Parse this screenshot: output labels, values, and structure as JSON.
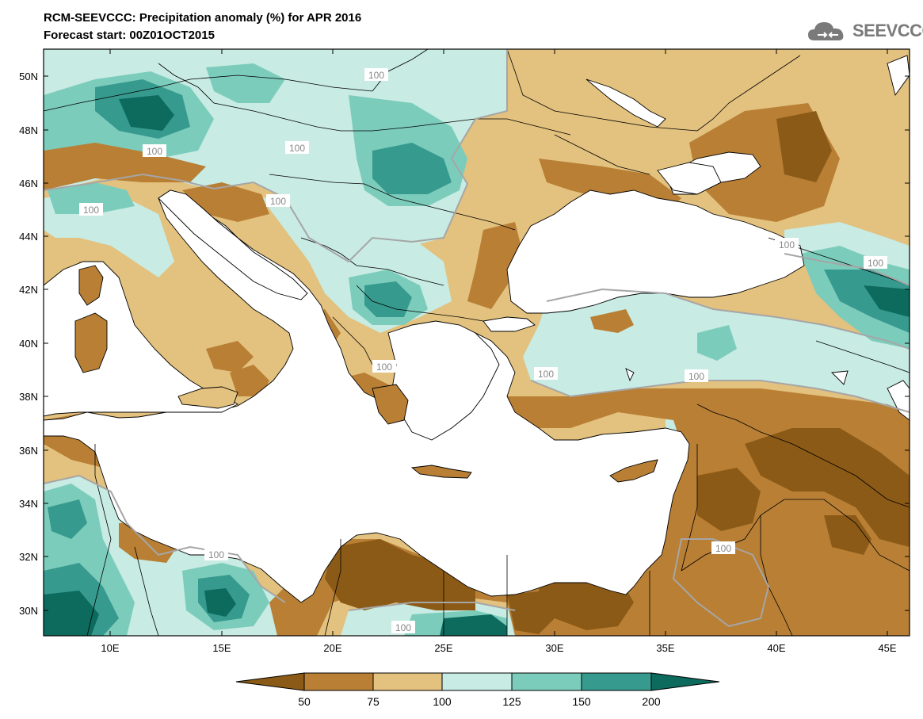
{
  "header": {
    "title": "RCM-SEEVCCC: Precipitation anomaly (%) for APR 2016",
    "subtitle": "Forecast start: 00Z01OCT2015",
    "logo_text": "SEEVCCC"
  },
  "axes": {
    "lat_labels": [
      "50N",
      "48N",
      "46N",
      "44N",
      "42N",
      "40N",
      "38N",
      "36N",
      "34N",
      "32N",
      "30N"
    ],
    "lon_labels": [
      "10E",
      "15E",
      "20E",
      "25E",
      "30E",
      "35E",
      "40E",
      "45E"
    ]
  },
  "contour_labels": [
    "100",
    "100",
    "100",
    "100",
    "100",
    "100",
    "100",
    "100",
    "100",
    "100",
    "100",
    "100",
    "100"
  ],
  "colorbar": {
    "labels": [
      "50",
      "75",
      "100",
      "125",
      "150",
      "200"
    ],
    "colors": [
      "#8b5a16",
      "#b87f35",
      "#e3c17e",
      "#c8ebe3",
      "#7cccbc",
      "#379a8e",
      "#0d6b5e"
    ]
  },
  "colors": {
    "land_base": "#e3c17e",
    "sea": "#ffffff",
    "boundary": "#000000",
    "contour_line": "#a6a6a6"
  }
}
